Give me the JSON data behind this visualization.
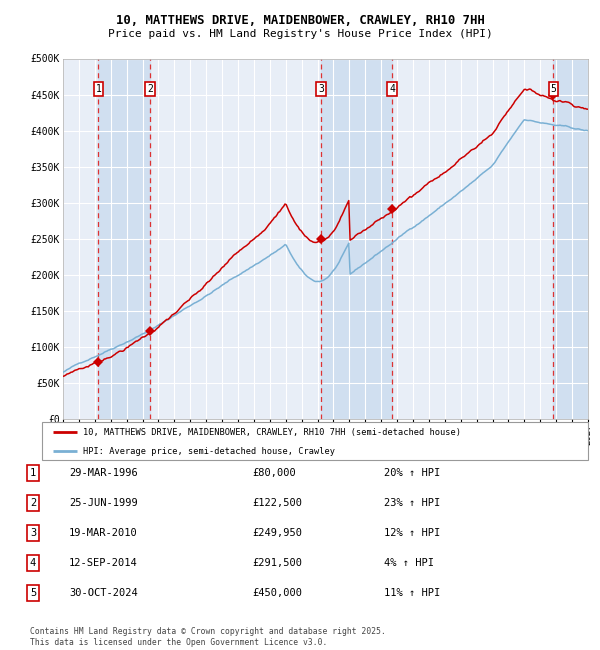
{
  "title_line1": "10, MATTHEWS DRIVE, MAIDENBOWER, CRAWLEY, RH10 7HH",
  "title_line2": "Price paid vs. HM Land Registry's House Price Index (HPI)",
  "xlim_start": 1994.0,
  "xlim_end": 2027.0,
  "ylim_min": 0,
  "ylim_max": 500000,
  "yticks": [
    0,
    50000,
    100000,
    150000,
    200000,
    250000,
    300000,
    350000,
    400000,
    450000,
    500000
  ],
  "ytick_labels": [
    "£0",
    "£50K",
    "£100K",
    "£150K",
    "£200K",
    "£250K",
    "£300K",
    "£350K",
    "£400K",
    "£450K",
    "£500K"
  ],
  "bg_color": "#e8eef7",
  "grid_color": "#ffffff",
  "red_line_color": "#cc0000",
  "blue_line_color": "#7ab0d4",
  "sale_marker_color": "#cc0000",
  "dashed_line_color": "#dd3333",
  "shade_color": "#d0dff0",
  "purchases": [
    {
      "num": 1,
      "date_label": "29-MAR-1996",
      "year": 1996.23,
      "price": 80000,
      "pct": "20%",
      "label": "1"
    },
    {
      "num": 2,
      "date_label": "25-JUN-1999",
      "year": 1999.48,
      "price": 122500,
      "pct": "23%",
      "label": "2"
    },
    {
      "num": 3,
      "date_label": "19-MAR-2010",
      "year": 2010.21,
      "price": 249950,
      "pct": "12%",
      "label": "3"
    },
    {
      "num": 4,
      "date_label": "12-SEP-2014",
      "year": 2014.7,
      "price": 291500,
      "pct": "4%",
      "label": "4"
    },
    {
      "num": 5,
      "date_label": "30-OCT-2024",
      "year": 2024.83,
      "price": 450000,
      "pct": "11%",
      "label": "5"
    }
  ],
  "legend_red_label": "10, MATTHEWS DRIVE, MAIDENBOWER, CRAWLEY, RH10 7HH (semi-detached house)",
  "legend_blue_label": "HPI: Average price, semi-detached house, Crawley",
  "footer": "Contains HM Land Registry data © Crown copyright and database right 2025.\nThis data is licensed under the Open Government Licence v3.0.",
  "table_rows": [
    [
      "1",
      "29-MAR-1996",
      "£80,000",
      "20% ↑ HPI"
    ],
    [
      "2",
      "25-JUN-1999",
      "£122,500",
      "23% ↑ HPI"
    ],
    [
      "3",
      "19-MAR-2010",
      "£249,950",
      "12% ↑ HPI"
    ],
    [
      "4",
      "12-SEP-2014",
      "£291,500",
      "4% ↑ HPI"
    ],
    [
      "5",
      "30-OCT-2024",
      "£450,000",
      "11% ↑ HPI"
    ]
  ]
}
